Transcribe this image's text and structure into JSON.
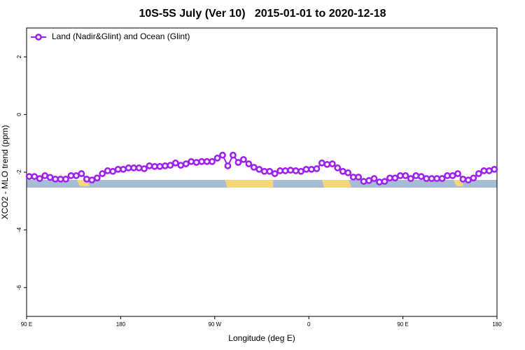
{
  "chart_data": {
    "type": "line",
    "title": "10S-5S July (Ver 10)   2015-01-01 to 2020-12-18",
    "xlabel": "Longitude (deg E)",
    "ylabel": "XCO2 - MLO trend (ppm)",
    "x": [
      92.5,
      97.5,
      102.5,
      107.5,
      112.5,
      117.5,
      122.5,
      127.5,
      132.5,
      137.5,
      142.5,
      147.5,
      152.5,
      157.5,
      162.5,
      167.5,
      172.5,
      177.5,
      182.5,
      187.5,
      192.5,
      197.5,
      202.5,
      207.5,
      212.5,
      217.5,
      222.5,
      227.5,
      232.5,
      237.5,
      242.5,
      247.5,
      252.5,
      257.5,
      262.5,
      267.5,
      272.5,
      277.5,
      282.5,
      287.5,
      292.5,
      297.5,
      302.5,
      307.5,
      312.5,
      317.5,
      322.5,
      327.5,
      332.5,
      337.5,
      342.5,
      347.5,
      352.5,
      357.5,
      362.5,
      367.5,
      372.5,
      377.5,
      382.5,
      387.5,
      392.5,
      397.5,
      402.5,
      407.5,
      412.5,
      417.5,
      422.5,
      427.5,
      432.5,
      437.5,
      442.5,
      447.5,
      452.5,
      457.5,
      462.5,
      467.5,
      472.5,
      477.5,
      482.5,
      487.5,
      492.5,
      497.5,
      502.5,
      507.5,
      512.5,
      517.5,
      522.5,
      527.5,
      532.5,
      537.5
    ],
    "series": [
      {
        "name": "Land (Nadir&Glint) and Ocean (Glint)",
        "color": "#a020f0",
        "values": [
          -2.15,
          -2.15,
          -2.22,
          -2.12,
          -2.18,
          -2.24,
          -2.24,
          -2.24,
          -2.12,
          -2.12,
          -2.05,
          -2.24,
          -2.27,
          -2.2,
          -2.05,
          -1.95,
          -1.97,
          -1.9,
          -1.9,
          -1.85,
          -1.85,
          -1.85,
          -1.88,
          -1.78,
          -1.8,
          -1.8,
          -1.78,
          -1.76,
          -1.68,
          -1.76,
          -1.71,
          -1.63,
          -1.66,
          -1.63,
          -1.63,
          -1.63,
          -1.51,
          -1.41,
          -1.78,
          -1.41,
          -1.66,
          -1.56,
          -1.71,
          -1.83,
          -1.9,
          -1.97,
          -1.97,
          -2.05,
          -1.95,
          -1.95,
          -1.93,
          -1.95,
          -1.97,
          -1.9,
          -1.9,
          -1.88,
          -1.68,
          -1.73,
          -1.71,
          -1.85,
          -1.97,
          -2.02,
          -2.17,
          -2.17,
          -2.32,
          -2.29,
          -2.22,
          -2.34,
          -2.32,
          -2.2,
          -2.2,
          -2.12,
          -2.12,
          -2.22,
          -2.12,
          -2.15,
          -2.22,
          -2.22,
          -2.22,
          -2.22,
          -2.12,
          -2.12,
          -2.05,
          -2.24,
          -2.27,
          -2.2,
          -2.05,
          -1.95,
          -1.95,
          -1.9
        ]
      }
    ],
    "xlim": [
      90,
      540
    ],
    "xticks": [
      {
        "value": 90,
        "label": "90 E"
      },
      180,
      {
        "value": 270,
        "label": "90 W"
      },
      {
        "value": 360,
        "label": "0"
      },
      {
        "value": 450,
        "label": "90 E"
      },
      {
        "value": 540,
        "label": "180"
      }
    ],
    "ylim": [
      -7,
      3
    ],
    "yticks": [
      2,
      0,
      -2,
      -4,
      -6
    ],
    "legend": "top-left"
  }
}
